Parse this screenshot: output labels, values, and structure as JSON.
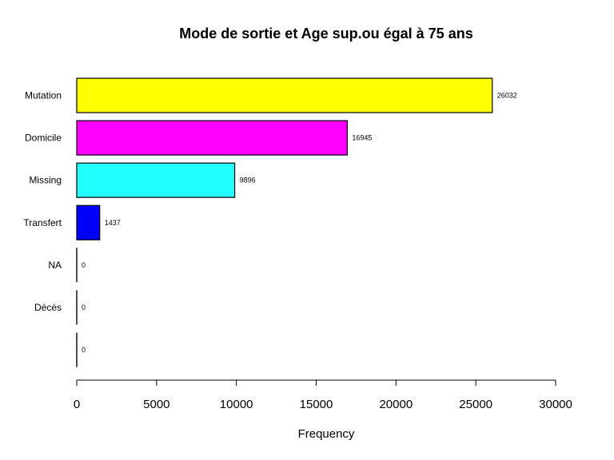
{
  "chart_data": {
    "type": "bar",
    "orientation": "horizontal",
    "title": "Mode de sortie et Age sup.ou égal à 75 ans",
    "xlabel": "Frequency",
    "ylabel": "",
    "xlim": [
      0,
      30000
    ],
    "x_ticks": [
      0,
      5000,
      10000,
      15000,
      20000,
      25000,
      30000
    ],
    "grid": false,
    "legend": "none",
    "categories": [
      "Mutation",
      "Domicile",
      "Missing",
      "Transfert",
      "NA",
      "Décès",
      ""
    ],
    "values": [
      26032,
      16945,
      9896,
      1437,
      0,
      0,
      0
    ],
    "value_labels": [
      "26032",
      "16945",
      "9896",
      "1437",
      "0",
      "0",
      "0"
    ],
    "colors": [
      "#ffff00",
      "#ff00ff",
      "#22ffff",
      "#0000ff",
      "#ffffff",
      "#ffffff",
      "#ffffff"
    ]
  }
}
